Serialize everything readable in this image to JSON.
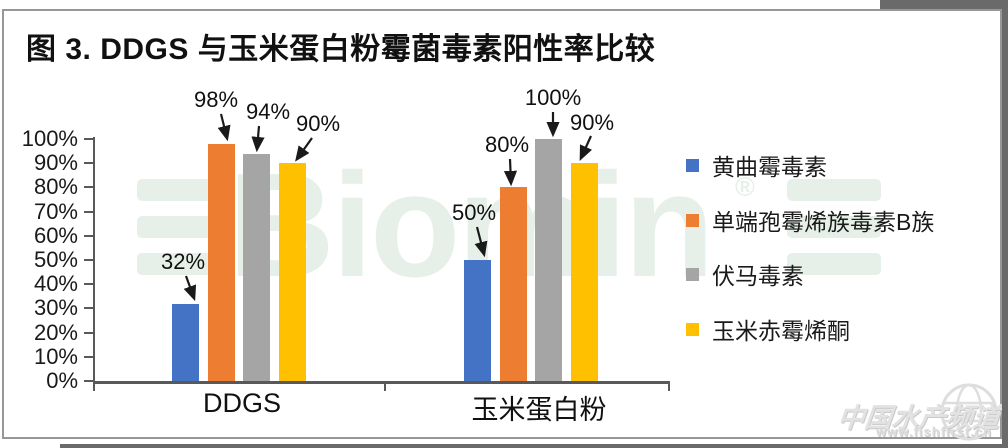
{
  "chart_data": {
    "type": "bar",
    "title": "图 3. DDGS 与玉米蛋白粉霉菌毒素阳性率比较",
    "categories": [
      "DDGS",
      "玉米蛋白粉"
    ],
    "series": [
      {
        "name": "黄曲霉毒素",
        "color": "#4472C4",
        "values": [
          32,
          50
        ],
        "labels": [
          "32%",
          "50%"
        ]
      },
      {
        "name": "单端孢霉烯族毒素B族",
        "color": "#ED7D31",
        "values": [
          98,
          80
        ],
        "labels": [
          "98%",
          "80%"
        ]
      },
      {
        "name": "伏马毒素",
        "color": "#A5A5A5",
        "values": [
          94,
          100
        ],
        "labels": [
          "94%",
          "100%"
        ]
      },
      {
        "name": "玉米赤霉烯酮",
        "color": "#FFC000",
        "values": [
          90,
          90
        ],
        "labels": [
          "90%",
          "90%"
        ]
      }
    ],
    "xlabel": "",
    "ylabel": "",
    "ylim": [
      0,
      100
    ],
    "y_tick_labels": [
      "100%",
      "90%",
      "80%",
      "70%",
      "60%",
      "50%",
      "40%",
      "30%",
      "20%",
      "10%",
      "0%"
    ],
    "grid": false,
    "legend_position": "right",
    "value_label_arrows": true
  },
  "watermarks": {
    "brand_text": "Biomin",
    "brand_registered": "®",
    "brand_color": "#e6f0e9",
    "site_name": "中国水产频道",
    "site_url": "www.fishfirst.cn"
  },
  "colors": {
    "axis": "#595959",
    "text": "#1a1a1a"
  }
}
